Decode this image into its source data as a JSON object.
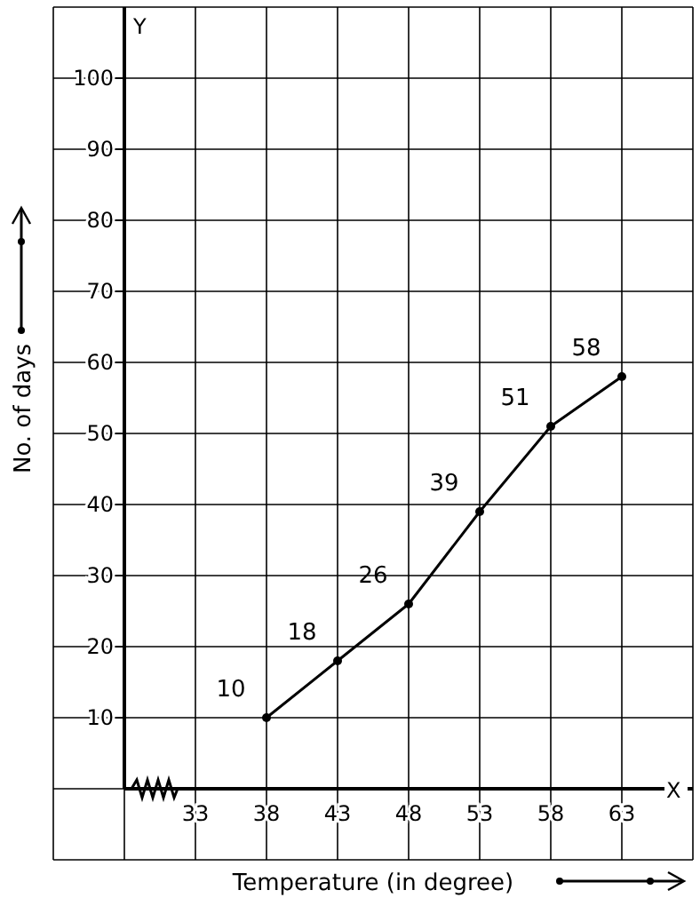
{
  "chart_data": {
    "type": "line",
    "xlabel": "Temperature (in degree)",
    "ylabel": "No. of days",
    "x": [
      38,
      43,
      48,
      53,
      58,
      63
    ],
    "series": [
      {
        "color": "#000000",
        "values": [
          10,
          18,
          26,
          39,
          51,
          58
        ]
      }
    ],
    "xlim": [
      28,
      68
    ],
    "xticks": [
      33,
      38,
      43,
      48,
      53,
      58,
      63
    ],
    "ylim": [
      0,
      110
    ],
    "yticks": [
      10,
      20,
      30,
      40,
      50,
      60,
      70,
      80,
      90,
      100
    ],
    "grid": true,
    "marker": "circle",
    "data_labels": true,
    "annotations": [
      "X",
      "Y"
    ]
  }
}
